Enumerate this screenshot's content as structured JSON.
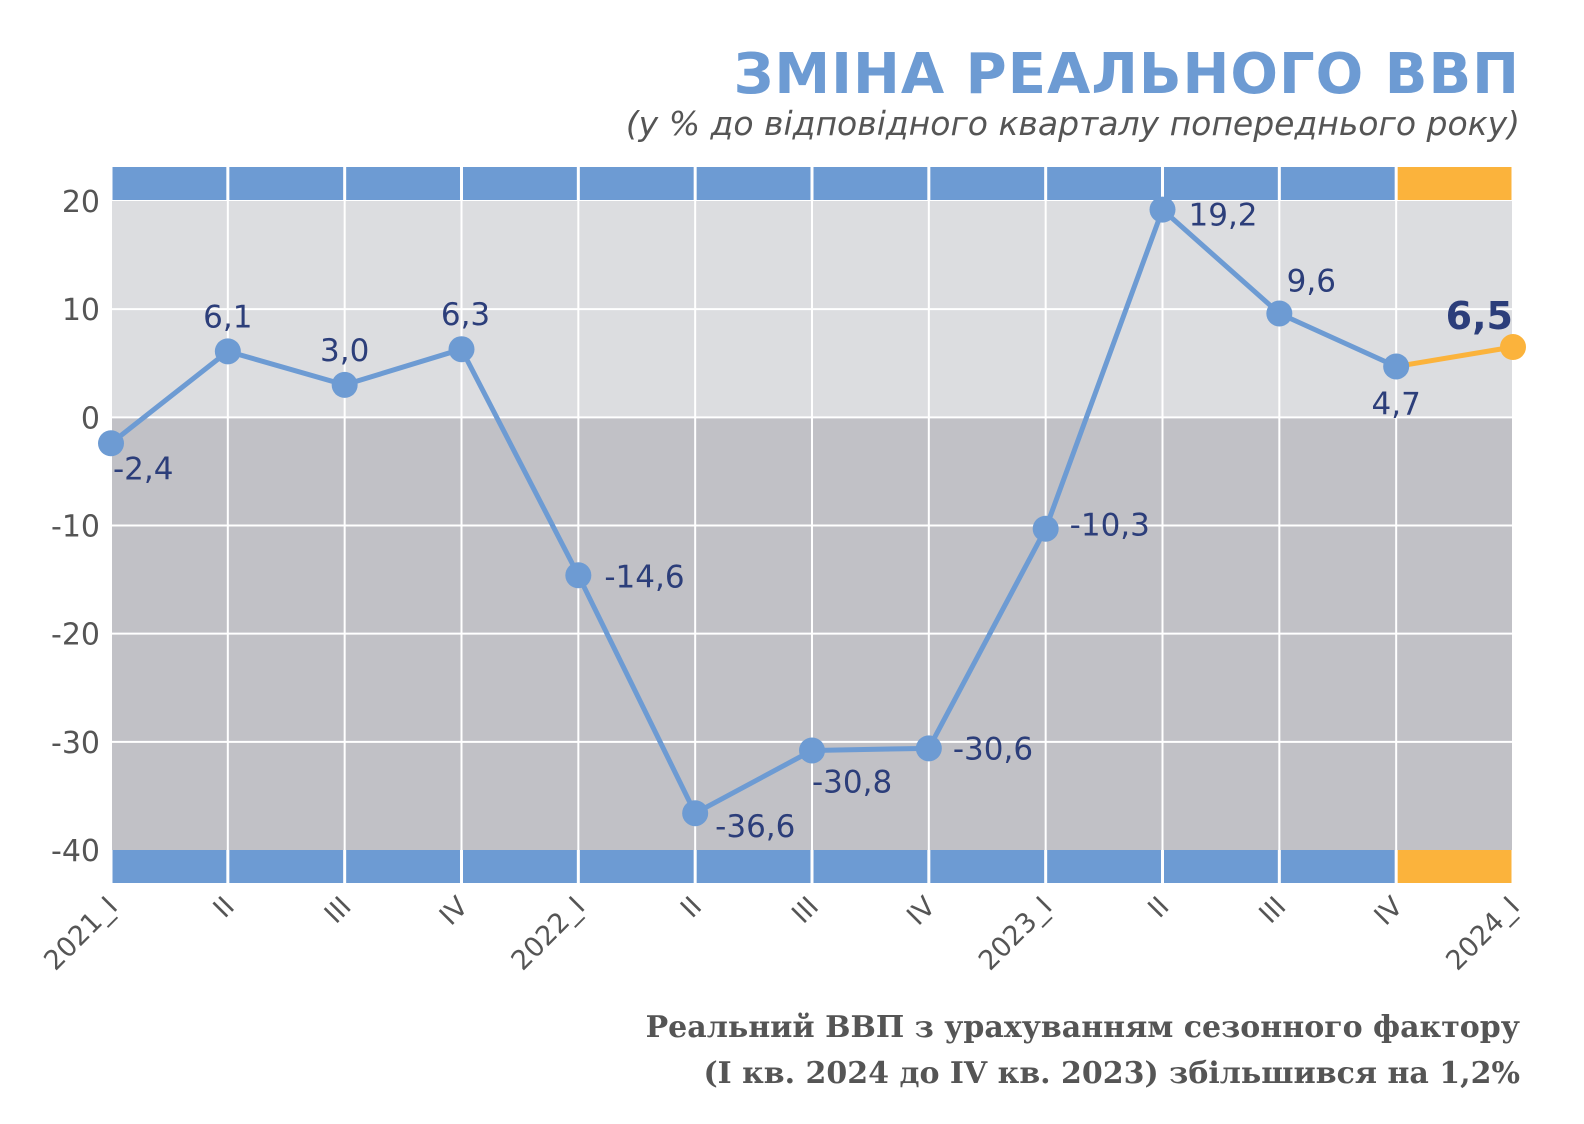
{
  "chart_data": {
    "type": "line",
    "title": "ЗМІНА РЕАЛЬНОГО ВВП",
    "subtitle": "(у % до відповідного кварталу попереднього року)",
    "categories": [
      "2021_I",
      "II",
      "III",
      "IV",
      "2022_I",
      "II",
      "III",
      "IV",
      "2023_I",
      "II",
      "III",
      "IV",
      "2024_I"
    ],
    "values": [
      -2.4,
      6.1,
      3.0,
      6.3,
      -14.6,
      -36.6,
      -30.8,
      -30.6,
      -10.3,
      19.2,
      9.6,
      4.7,
      6.5
    ],
    "data_labels": [
      "-2,4",
      "6,1",
      "3,0",
      "6,3",
      "-14,6",
      "-36,6",
      "-30,8",
      "-30,6",
      "-10,3",
      "19,2",
      "9,6",
      "4,7",
      "6,5"
    ],
    "highlight_index": 12,
    "ylim": [
      -40,
      20
    ],
    "yticks": [
      20,
      10,
      0,
      -10,
      -20,
      -30,
      -40
    ],
    "ytick_labels": [
      "20",
      "10",
      "0",
      "-10",
      "-20",
      "-30",
      "-40"
    ],
    "grid": true,
    "legend": "none",
    "colors": {
      "line": "#6d9bd3",
      "highlight": "#fbb33c",
      "band": "#6d9bd3",
      "band_highlight": "#fbb33c",
      "positive_bg": "#dcdde0",
      "negative_bg": "#c1c1c6",
      "label_text": "#2c3e7a"
    }
  },
  "footnote": {
    "line1": "Реальний ВВП з урахуванням сезонного фактору",
    "line2": "(І кв. 2024 до IV кв. 2023) збільшився на 1,2%"
  }
}
